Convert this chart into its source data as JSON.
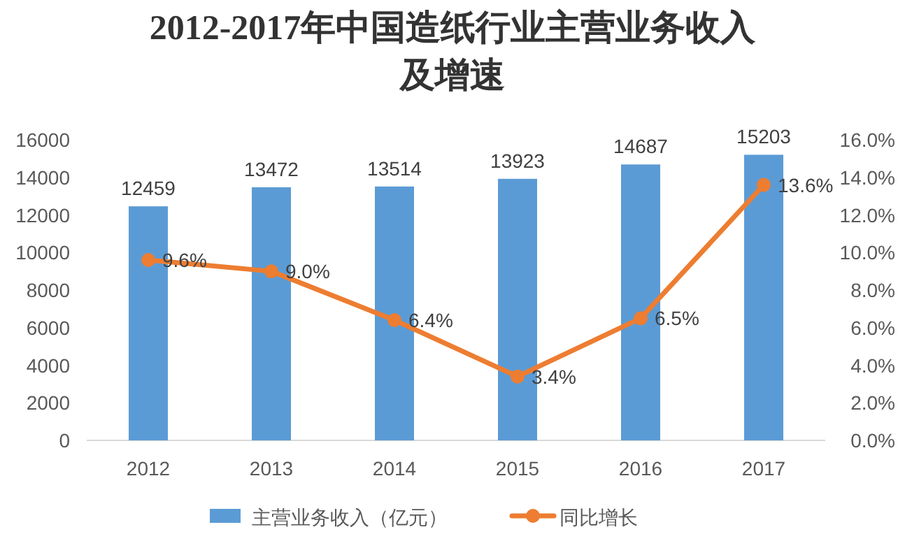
{
  "chart_data": {
    "type": "bar",
    "title": "2012-2017年中国造纸行业主营业务收入及增速",
    "categories": [
      "2012",
      "2013",
      "2014",
      "2015",
      "2016",
      "2017"
    ],
    "series": [
      {
        "name": "主营业务收入（亿元）",
        "color": "#5b9bd5",
        "values": [
          12459,
          13472,
          13514,
          13923,
          14687,
          15203
        ],
        "value_labels": [
          "12459",
          "13472",
          "13514",
          "13923",
          "14687",
          "15203"
        ]
      },
      {
        "name": "同比增长",
        "type": "line",
        "axis": "y2",
        "color": "#ed7d31",
        "values": [
          9.6,
          9.0,
          6.4,
          3.4,
          6.5,
          13.6
        ],
        "value_labels": [
          "9.6%",
          "9.0%",
          "6.4%",
          "3.4%",
          "6.5%",
          "13.6%"
        ]
      }
    ],
    "ylim": [
      0,
      16000
    ],
    "yticks": [
      0,
      2000,
      4000,
      6000,
      8000,
      10000,
      12000,
      14000,
      16000
    ],
    "y2lim": [
      0,
      16
    ],
    "y2ticks": [
      {
        "value": 0,
        "label": "0.0%"
      },
      {
        "value": 2,
        "label": "2.0%"
      },
      {
        "value": 4,
        "label": "4.0%"
      },
      {
        "value": 6,
        "label": "6.0%"
      },
      {
        "value": 8,
        "label": "8.0%"
      },
      {
        "value": 10,
        "label": "10.0%"
      },
      {
        "value": 12,
        "label": "12.0%"
      },
      {
        "value": 14,
        "label": "14.0%"
      },
      {
        "value": 16,
        "label": "16.0%"
      }
    ],
    "grid": false,
    "legend": "bottom",
    "marker": "circle",
    "line_style": "solid"
  }
}
